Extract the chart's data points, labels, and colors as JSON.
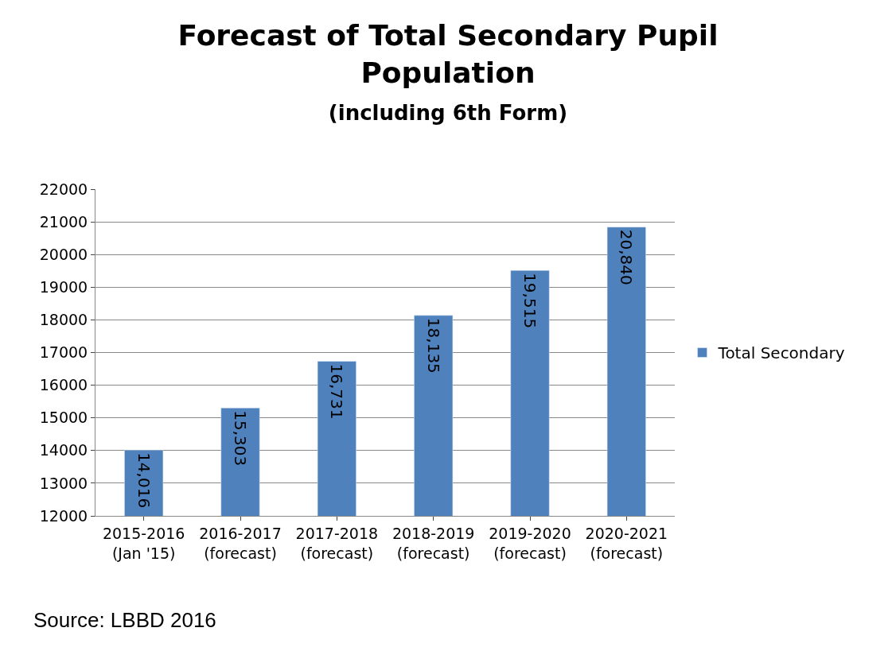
{
  "chart_data": {
    "type": "bar",
    "title": "Forecast of Total Secondary Pupil\nPopulation",
    "subtitle": "(including 6th Form)",
    "categories": [
      "2015-2016\n(Jan '15)",
      "2016-2017\n(forecast)",
      "2017-2018\n(forecast)",
      "2018-2019\n(forecast)",
      "2019-2020\n(forecast)",
      "2020-2021\n(forecast)"
    ],
    "series": [
      {
        "name": "Total Secondary",
        "color": "#4f81bd",
        "values": [
          14016,
          15303,
          16731,
          18135,
          19515,
          20840
        ],
        "value_labels": [
          "14,016",
          "15,303",
          "16,731",
          "18,135",
          "19,515",
          "20,840"
        ]
      }
    ],
    "ylim": [
      12000,
      22000
    ],
    "yticks": [
      12000,
      13000,
      14000,
      15000,
      16000,
      17000,
      18000,
      19000,
      20000,
      21000,
      22000
    ],
    "grid": "y",
    "legend": "right",
    "annotations": [
      "Source: LBBD 2016"
    ]
  }
}
